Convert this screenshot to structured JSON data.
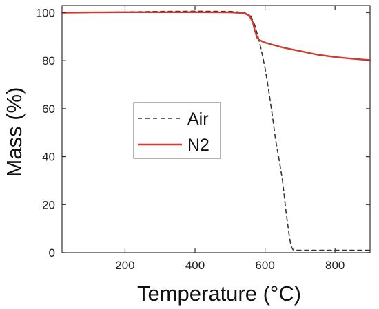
{
  "chart_data": {
    "type": "line",
    "title": "",
    "xlabel": "Temperature (°C)",
    "ylabel": "Mass (%)",
    "xlim": [
      20,
      900
    ],
    "ylim": [
      0,
      103
    ],
    "xticks": [
      200,
      400,
      600,
      800
    ],
    "yticks": [
      0,
      20,
      40,
      60,
      80,
      100
    ],
    "grid": false,
    "legend_position": "center-left",
    "series": [
      {
        "name": "Air",
        "color": "#333333",
        "style": "dashed",
        "x": [
          20,
          100,
          200,
          300,
          400,
          500,
          540,
          560,
          570,
          580,
          590,
          600,
          610,
          620,
          630,
          640,
          650,
          660,
          670,
          675,
          680,
          685,
          690,
          700,
          800,
          900
        ],
        "y": [
          100,
          100.1,
          100.3,
          100.5,
          100.6,
          100.5,
          100.1,
          98.5,
          95,
          90,
          84,
          77,
          68,
          58,
          47,
          39,
          30,
          17,
          6,
          2.5,
          1.2,
          1.0,
          1.0,
          1.0,
          1.0,
          1.0
        ]
      },
      {
        "name": "N2",
        "color": "#d2392f",
        "style": "solid",
        "x": [
          20,
          100,
          200,
          300,
          400,
          500,
          540,
          555,
          565,
          572,
          578,
          585,
          600,
          650,
          700,
          750,
          800,
          850,
          900
        ],
        "y": [
          100,
          100.1,
          100.2,
          100.2,
          100.2,
          100.1,
          99.8,
          98.8,
          96,
          92,
          89.5,
          88.5,
          87.5,
          85.5,
          84,
          82.5,
          81.5,
          80.8,
          80.2
        ]
      }
    ]
  }
}
